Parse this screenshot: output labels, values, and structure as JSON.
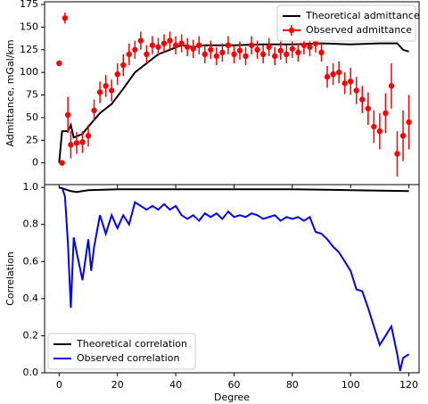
{
  "chart_data": [
    {
      "type": "line",
      "ylabel": "Admittance, mGal/km",
      "xlim": [
        -5,
        123.5
      ],
      "ylim": [
        -24,
        178
      ],
      "xticks": [
        0,
        20,
        40,
        60,
        80,
        100,
        120
      ],
      "yticks": [
        0,
        25,
        50,
        75,
        100,
        125,
        150,
        175
      ],
      "legend": "upper right",
      "series": [
        {
          "name": "Theoretical admittance",
          "color": "#000000",
          "style": "line",
          "x": [
            0,
            1,
            3,
            4,
            5,
            8,
            10,
            14,
            18,
            22,
            26,
            30,
            34,
            38,
            42,
            46,
            50,
            60,
            70,
            80,
            90,
            100,
            110,
            116,
            118,
            120
          ],
          "values": [
            0,
            35,
            35,
            42,
            28,
            32,
            40,
            55,
            65,
            82,
            100,
            110,
            120,
            125,
            130,
            128,
            130,
            130,
            131,
            131,
            132,
            131,
            132,
            132,
            125,
            123
          ]
        },
        {
          "name": "Observed admittance",
          "color": "#ff0000",
          "style": "errorbar",
          "x": [
            0,
            1,
            2,
            3,
            4,
            6,
            8,
            10,
            12,
            14,
            16,
            18,
            20,
            22,
            24,
            26,
            28,
            30,
            32,
            34,
            36,
            38,
            40,
            42,
            44,
            46,
            48,
            50,
            52,
            54,
            56,
            58,
            60,
            62,
            64,
            66,
            68,
            70,
            72,
            74,
            76,
            78,
            80,
            82,
            84,
            86,
            88,
            90,
            92,
            94,
            96,
            98,
            100,
            102,
            104,
            106,
            108,
            110,
            112,
            114,
            116,
            118,
            120
          ],
          "values": [
            110,
            0,
            160,
            53,
            20,
            22,
            23,
            30,
            58,
            78,
            85,
            80,
            98,
            108,
            120,
            125,
            135,
            120,
            130,
            128,
            132,
            135,
            130,
            132,
            128,
            126,
            130,
            120,
            125,
            118,
            122,
            130,
            120,
            124,
            118,
            130,
            125,
            120,
            128,
            118,
            124,
            120,
            126,
            122,
            130,
            128,
            132,
            122,
            95,
            98,
            100,
            88,
            90,
            80,
            70,
            60,
            40,
            35,
            55,
            85,
            10,
            30,
            45
          ],
          "errors": [
            3,
            3,
            6,
            20,
            15,
            12,
            12,
            12,
            12,
            12,
            12,
            12,
            12,
            12,
            12,
            10,
            10,
            10,
            10,
            10,
            10,
            10,
            10,
            10,
            10,
            10,
            10,
            10,
            10,
            10,
            10,
            10,
            10,
            10,
            10,
            10,
            10,
            10,
            10,
            10,
            10,
            10,
            10,
            10,
            10,
            10,
            10,
            10,
            12,
            12,
            12,
            12,
            15,
            15,
            15,
            18,
            18,
            20,
            22,
            25,
            25,
            28,
            30
          ]
        }
      ]
    },
    {
      "type": "line",
      "xlabel": "Degree",
      "ylabel": "Correlation",
      "xlim": [
        -5,
        123.5
      ],
      "ylim": [
        0,
        1.015
      ],
      "xticks": [
        0,
        20,
        40,
        60,
        80,
        100,
        120
      ],
      "yticks": [
        {
          "value": 0,
          "label": "0.0"
        },
        {
          "value": 0.2,
          "label": "0.2"
        },
        {
          "value": 0.4,
          "label": "0.4"
        },
        {
          "value": 0.6,
          "label": "0.6"
        },
        {
          "value": 0.8,
          "label": "0.8"
        },
        {
          "value": 1,
          "label": "1.0"
        }
      ],
      "legend": "lower left",
      "series": [
        {
          "name": "Theoretical correlation",
          "color": "#000000",
          "style": "line",
          "x": [
            0,
            2,
            4,
            6,
            8,
            10,
            20,
            40,
            60,
            80,
            100,
            120
          ],
          "values": [
            1.0,
            0.99,
            0.98,
            0.975,
            0.98,
            0.985,
            0.99,
            0.99,
            0.99,
            0.99,
            0.985,
            0.98
          ]
        },
        {
          "name": "Observed correlation",
          "color": "#0000ff",
          "style": "line",
          "x": [
            1,
            2,
            3,
            4,
            5,
            6,
            8,
            10,
            11,
            12,
            14,
            16,
            18,
            20,
            22,
            24,
            26,
            28,
            30,
            32,
            34,
            36,
            38,
            40,
            42,
            44,
            46,
            48,
            50,
            52,
            54,
            56,
            58,
            60,
            62,
            64,
            66,
            68,
            70,
            72,
            74,
            76,
            78,
            80,
            82,
            84,
            86,
            88,
            90,
            92,
            94,
            96,
            98,
            100,
            102,
            104,
            106,
            108,
            110,
            112,
            114,
            116,
            117,
            118,
            120
          ],
          "values": [
            1.0,
            0.95,
            0.7,
            0.35,
            0.73,
            0.65,
            0.5,
            0.72,
            0.55,
            0.68,
            0.85,
            0.75,
            0.85,
            0.78,
            0.85,
            0.8,
            0.92,
            0.9,
            0.88,
            0.9,
            0.88,
            0.91,
            0.88,
            0.9,
            0.85,
            0.83,
            0.85,
            0.82,
            0.86,
            0.84,
            0.86,
            0.83,
            0.87,
            0.84,
            0.85,
            0.84,
            0.86,
            0.85,
            0.83,
            0.84,
            0.85,
            0.82,
            0.84,
            0.83,
            0.84,
            0.82,
            0.84,
            0.76,
            0.75,
            0.72,
            0.68,
            0.65,
            0.6,
            0.55,
            0.45,
            0.44,
            0.35,
            0.25,
            0.15,
            0.2,
            0.25,
            0.1,
            0.01,
            0.08,
            0.1
          ]
        }
      ]
    }
  ]
}
